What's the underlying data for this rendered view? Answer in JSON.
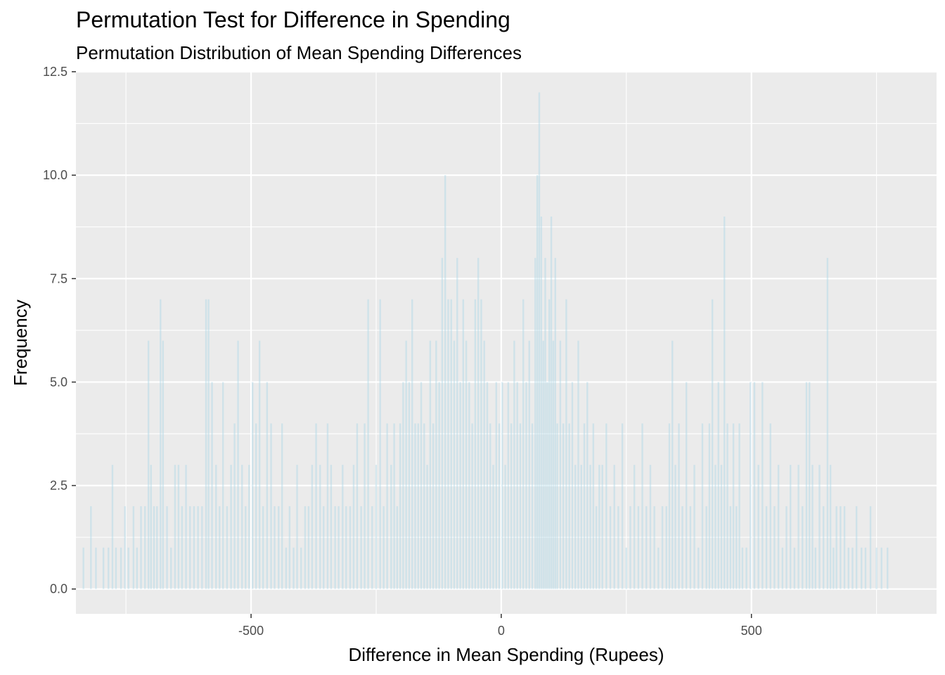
{
  "chart_data": {
    "type": "bar",
    "title": "Permutation Test for Difference in Spending",
    "subtitle": "Permutation Distribution of Mean Spending Differences",
    "xlabel": "Difference in Mean Spending (Rupees)",
    "ylabel": "Frequency",
    "xlim": [
      -850,
      870
    ],
    "ylim": [
      -0.6,
      12.5
    ],
    "x_ticks": [
      -500,
      0,
      500
    ],
    "x_tick_labels": [
      "-500",
      "0",
      "500"
    ],
    "y_ticks": [
      0,
      2.5,
      5,
      7.5,
      10,
      12.5
    ],
    "y_tick_labels": [
      "0.0",
      "2.5",
      "5.0",
      "7.5",
      "10.0",
      "12.5"
    ],
    "grid": true,
    "bar_color": "#add8e6",
    "bar_opacity": 0.45,
    "panel_color": "#ebebeb",
    "binwidth": 3.4,
    "bins": [
      [
        -835,
        1
      ],
      [
        -820,
        2
      ],
      [
        -810,
        1
      ],
      [
        -795,
        1
      ],
      [
        -785,
        1
      ],
      [
        -777,
        3
      ],
      [
        -770,
        1
      ],
      [
        -760,
        1
      ],
      [
        -752,
        2
      ],
      [
        -745,
        1
      ],
      [
        -735,
        2
      ],
      [
        -728,
        1
      ],
      [
        -720,
        2
      ],
      [
        -712,
        2
      ],
      [
        -705,
        6
      ],
      [
        -700,
        3
      ],
      [
        -694,
        2
      ],
      [
        -688,
        2
      ],
      [
        -681,
        7
      ],
      [
        -676,
        6
      ],
      [
        -668,
        2
      ],
      [
        -660,
        1
      ],
      [
        -652,
        3
      ],
      [
        -645,
        3
      ],
      [
        -638,
        2
      ],
      [
        -630,
        3
      ],
      [
        -622,
        2
      ],
      [
        -614,
        2
      ],
      [
        -606,
        2
      ],
      [
        -598,
        2
      ],
      [
        -590,
        7
      ],
      [
        -585,
        7
      ],
      [
        -578,
        5
      ],
      [
        -570,
        3
      ],
      [
        -563,
        2
      ],
      [
        -556,
        5
      ],
      [
        -548,
        2
      ],
      [
        -540,
        3
      ],
      [
        -533,
        4
      ],
      [
        -526,
        6
      ],
      [
        -518,
        3
      ],
      [
        -511,
        2
      ],
      [
        -504,
        3
      ],
      [
        -497,
        5
      ],
      [
        -490,
        4
      ],
      [
        -483,
        6
      ],
      [
        -476,
        2
      ],
      [
        -468,
        5
      ],
      [
        -460,
        4
      ],
      [
        -453,
        2
      ],
      [
        -445,
        2
      ],
      [
        -438,
        4
      ],
      [
        -430,
        1
      ],
      [
        -423,
        2
      ],
      [
        -415,
        1
      ],
      [
        -408,
        3
      ],
      [
        -400,
        1
      ],
      [
        -392,
        2
      ],
      [
        -385,
        2
      ],
      [
        -378,
        3
      ],
      [
        -370,
        4
      ],
      [
        -362,
        3
      ],
      [
        -355,
        2
      ],
      [
        -347,
        4
      ],
      [
        -340,
        3
      ],
      [
        -332,
        2
      ],
      [
        -325,
        2
      ],
      [
        -317,
        3
      ],
      [
        -310,
        2
      ],
      [
        -302,
        2
      ],
      [
        -295,
        3
      ],
      [
        -288,
        4
      ],
      [
        -280,
        2
      ],
      [
        -273,
        4
      ],
      [
        -266,
        7
      ],
      [
        -258,
        2
      ],
      [
        -250,
        3
      ],
      [
        -242,
        7
      ],
      [
        -235,
        2
      ],
      [
        -228,
        4
      ],
      [
        -220,
        3
      ],
      [
        -214,
        4
      ],
      [
        -208,
        2
      ],
      [
        -202,
        4
      ],
      [
        -196,
        5
      ],
      [
        -190,
        6
      ],
      [
        -184,
        5
      ],
      [
        -178,
        7
      ],
      [
        -172,
        4
      ],
      [
        -166,
        4
      ],
      [
        -160,
        5
      ],
      [
        -154,
        4
      ],
      [
        -148,
        3
      ],
      [
        -142,
        6
      ],
      [
        -136,
        4
      ],
      [
        -130,
        6
      ],
      [
        -124,
        5
      ],
      [
        -118,
        8
      ],
      [
        -112,
        10
      ],
      [
        -106,
        7
      ],
      [
        -100,
        7
      ],
      [
        -94,
        6
      ],
      [
        -88,
        8
      ],
      [
        -82,
        5
      ],
      [
        -76,
        7
      ],
      [
        -70,
        6
      ],
      [
        -64,
        5
      ],
      [
        -58,
        4
      ],
      [
        -52,
        7
      ],
      [
        -46,
        8
      ],
      [
        -40,
        7
      ],
      [
        -34,
        6
      ],
      [
        -28,
        5
      ],
      [
        -22,
        4
      ],
      [
        -16,
        3
      ],
      [
        -10,
        5
      ],
      [
        -4,
        4
      ],
      [
        2,
        5
      ],
      [
        8,
        3
      ],
      [
        14,
        5
      ],
      [
        20,
        4
      ],
      [
        26,
        6
      ],
      [
        32,
        5
      ],
      [
        38,
        4
      ],
      [
        44,
        7
      ],
      [
        50,
        5
      ],
      [
        56,
        6
      ],
      [
        62,
        4
      ],
      [
        68,
        8
      ],
      [
        72,
        10
      ],
      [
        76,
        12
      ],
      [
        80,
        9
      ],
      [
        84,
        6
      ],
      [
        88,
        8
      ],
      [
        92,
        5
      ],
      [
        96,
        7
      ],
      [
        100,
        9
      ],
      [
        104,
        6
      ],
      [
        108,
        8
      ],
      [
        112,
        4
      ],
      [
        118,
        6
      ],
      [
        124,
        4
      ],
      [
        130,
        7
      ],
      [
        136,
        4
      ],
      [
        142,
        5
      ],
      [
        148,
        3
      ],
      [
        154,
        6
      ],
      [
        160,
        3
      ],
      [
        166,
        4
      ],
      [
        172,
        5
      ],
      [
        178,
        3
      ],
      [
        184,
        4
      ],
      [
        190,
        2
      ],
      [
        196,
        3
      ],
      [
        202,
        3
      ],
      [
        210,
        4
      ],
      [
        218,
        2
      ],
      [
        226,
        3
      ],
      [
        234,
        2
      ],
      [
        242,
        4
      ],
      [
        250,
        1
      ],
      [
        258,
        2
      ],
      [
        266,
        3
      ],
      [
        274,
        2
      ],
      [
        282,
        4
      ],
      [
        290,
        2
      ],
      [
        298,
        3
      ],
      [
        306,
        2
      ],
      [
        314,
        1
      ],
      [
        322,
        2
      ],
      [
        330,
        2
      ],
      [
        336,
        4
      ],
      [
        342,
        6
      ],
      [
        348,
        3
      ],
      [
        355,
        4
      ],
      [
        362,
        2
      ],
      [
        370,
        5
      ],
      [
        378,
        2
      ],
      [
        386,
        3
      ],
      [
        394,
        1
      ],
      [
        402,
        4
      ],
      [
        410,
        2
      ],
      [
        416,
        4
      ],
      [
        422,
        7
      ],
      [
        428,
        3
      ],
      [
        434,
        5
      ],
      [
        440,
        3
      ],
      [
        446,
        9
      ],
      [
        452,
        4
      ],
      [
        458,
        2
      ],
      [
        464,
        4
      ],
      [
        470,
        2
      ],
      [
        476,
        4
      ],
      [
        482,
        1
      ],
      [
        490,
        1
      ],
      [
        498,
        5
      ],
      [
        506,
        5
      ],
      [
        514,
        3
      ],
      [
        522,
        5
      ],
      [
        530,
        2
      ],
      [
        538,
        4
      ],
      [
        546,
        2
      ],
      [
        554,
        3
      ],
      [
        562,
        1
      ],
      [
        570,
        2
      ],
      [
        578,
        3
      ],
      [
        586,
        1
      ],
      [
        594,
        3
      ],
      [
        602,
        2
      ],
      [
        610,
        5
      ],
      [
        616,
        5
      ],
      [
        622,
        3
      ],
      [
        628,
        1
      ],
      [
        636,
        3
      ],
      [
        644,
        2
      ],
      [
        652,
        8
      ],
      [
        658,
        3
      ],
      [
        664,
        1
      ],
      [
        670,
        2
      ],
      [
        678,
        2
      ],
      [
        686,
        2
      ],
      [
        694,
        1
      ],
      [
        702,
        1
      ],
      [
        710,
        2
      ],
      [
        720,
        1
      ],
      [
        728,
        1
      ],
      [
        738,
        2
      ],
      [
        750,
        1
      ],
      [
        760,
        1
      ],
      [
        772,
        1
      ]
    ]
  }
}
